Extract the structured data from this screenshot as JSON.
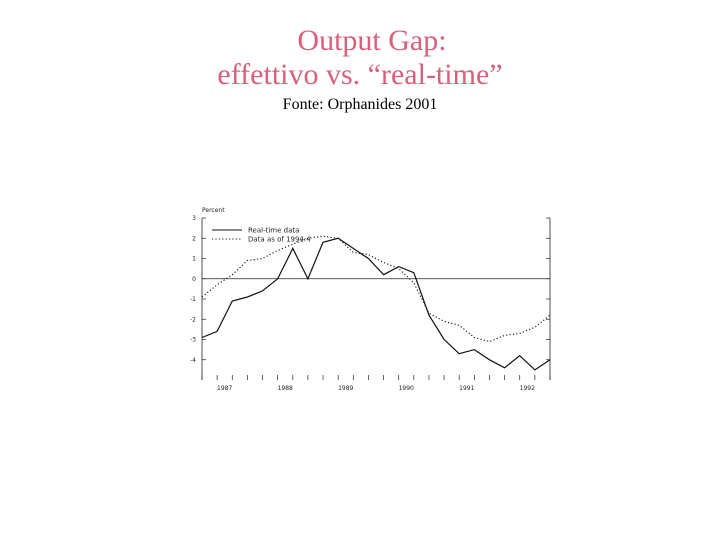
{
  "title_line1": "Output Gap:",
  "title_line2": "effettivo vs. “real-time”",
  "source": "Fonte: Orphanides 2001",
  "chart_data": {
    "type": "line",
    "ylabel": "Percent",
    "ylim": [
      -5,
      3
    ],
    "y_ticks": [
      "3",
      "2",
      "1",
      "0",
      "-1",
      "-2",
      "-3",
      "-4"
    ],
    "x_tick_labels": [
      "1987",
      "1988",
      "1989",
      "1990",
      "1991",
      "1992"
    ],
    "xlim": [
      1987.0,
      1992.75
    ],
    "zero_line": true,
    "legend_position": "top-left",
    "series": [
      {
        "name": "Real-time data",
        "style": "solid",
        "color": "#111111",
        "x": [
          1987.0,
          1987.25,
          1987.5,
          1987.75,
          1988.0,
          1988.25,
          1988.5,
          1988.75,
          1989.0,
          1989.25,
          1989.5,
          1989.75,
          1990.0,
          1990.25,
          1990.5,
          1990.75,
          1991.0,
          1991.25,
          1991.5,
          1991.75,
          1992.0,
          1992.25,
          1992.5,
          1992.75
        ],
        "y": [
          -2.9,
          -2.6,
          -1.1,
          -0.9,
          -0.6,
          0.0,
          1.5,
          0.0,
          1.8,
          2.0,
          1.5,
          1.0,
          0.2,
          0.6,
          0.3,
          -1.8,
          -3.0,
          -3.7,
          -3.5,
          -4.0,
          -4.4,
          -3.8,
          -4.5,
          -4.0
        ]
      },
      {
        "name": "Data as of 1994:4",
        "style": "dotted",
        "color": "#111111",
        "x": [
          1987.0,
          1987.25,
          1987.5,
          1987.75,
          1988.0,
          1988.25,
          1988.5,
          1988.75,
          1989.0,
          1989.25,
          1989.5,
          1989.75,
          1990.0,
          1990.25,
          1990.5,
          1990.75,
          1991.0,
          1991.25,
          1991.5,
          1991.75,
          1992.0,
          1992.25,
          1992.5,
          1992.75
        ],
        "y": [
          -0.9,
          -0.3,
          0.2,
          0.9,
          1.0,
          1.4,
          1.7,
          2.0,
          2.1,
          2.0,
          1.3,
          1.2,
          0.8,
          0.5,
          -0.2,
          -1.7,
          -2.1,
          -2.3,
          -2.9,
          -3.1,
          -2.8,
          -2.7,
          -2.4,
          -1.8
        ]
      }
    ]
  }
}
